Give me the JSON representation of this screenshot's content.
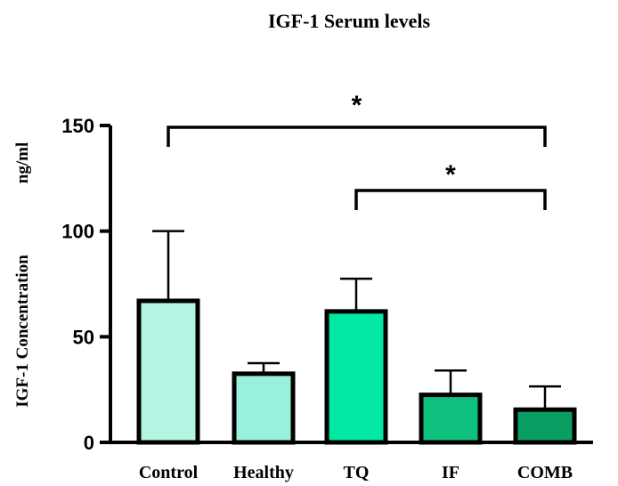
{
  "chart_data": {
    "type": "bar",
    "title": "IGF-1 Serum levels",
    "ylabel": "IGF-1 Concentration",
    "yunit": "ng/ml",
    "xlabel": "",
    "categories": [
      "Control",
      "Healthy",
      "TQ",
      "IF",
      "COMB"
    ],
    "values": [
      67,
      32.5,
      62,
      22.5,
      15.5
    ],
    "error_upper": [
      100,
      37.5,
      77.5,
      34,
      26.5
    ],
    "colors": [
      "#b3f5e3",
      "#99f0dc",
      "#00e8a3",
      "#0fc07f",
      "#0a9e63"
    ],
    "ylim": [
      0,
      150
    ],
    "yticks": [
      0,
      50,
      100,
      150
    ],
    "grid": false,
    "significance": [
      {
        "from": "Control",
        "to": "COMB",
        "label": "*"
      },
      {
        "from": "TQ",
        "to": "COMB",
        "label": "*"
      }
    ]
  }
}
